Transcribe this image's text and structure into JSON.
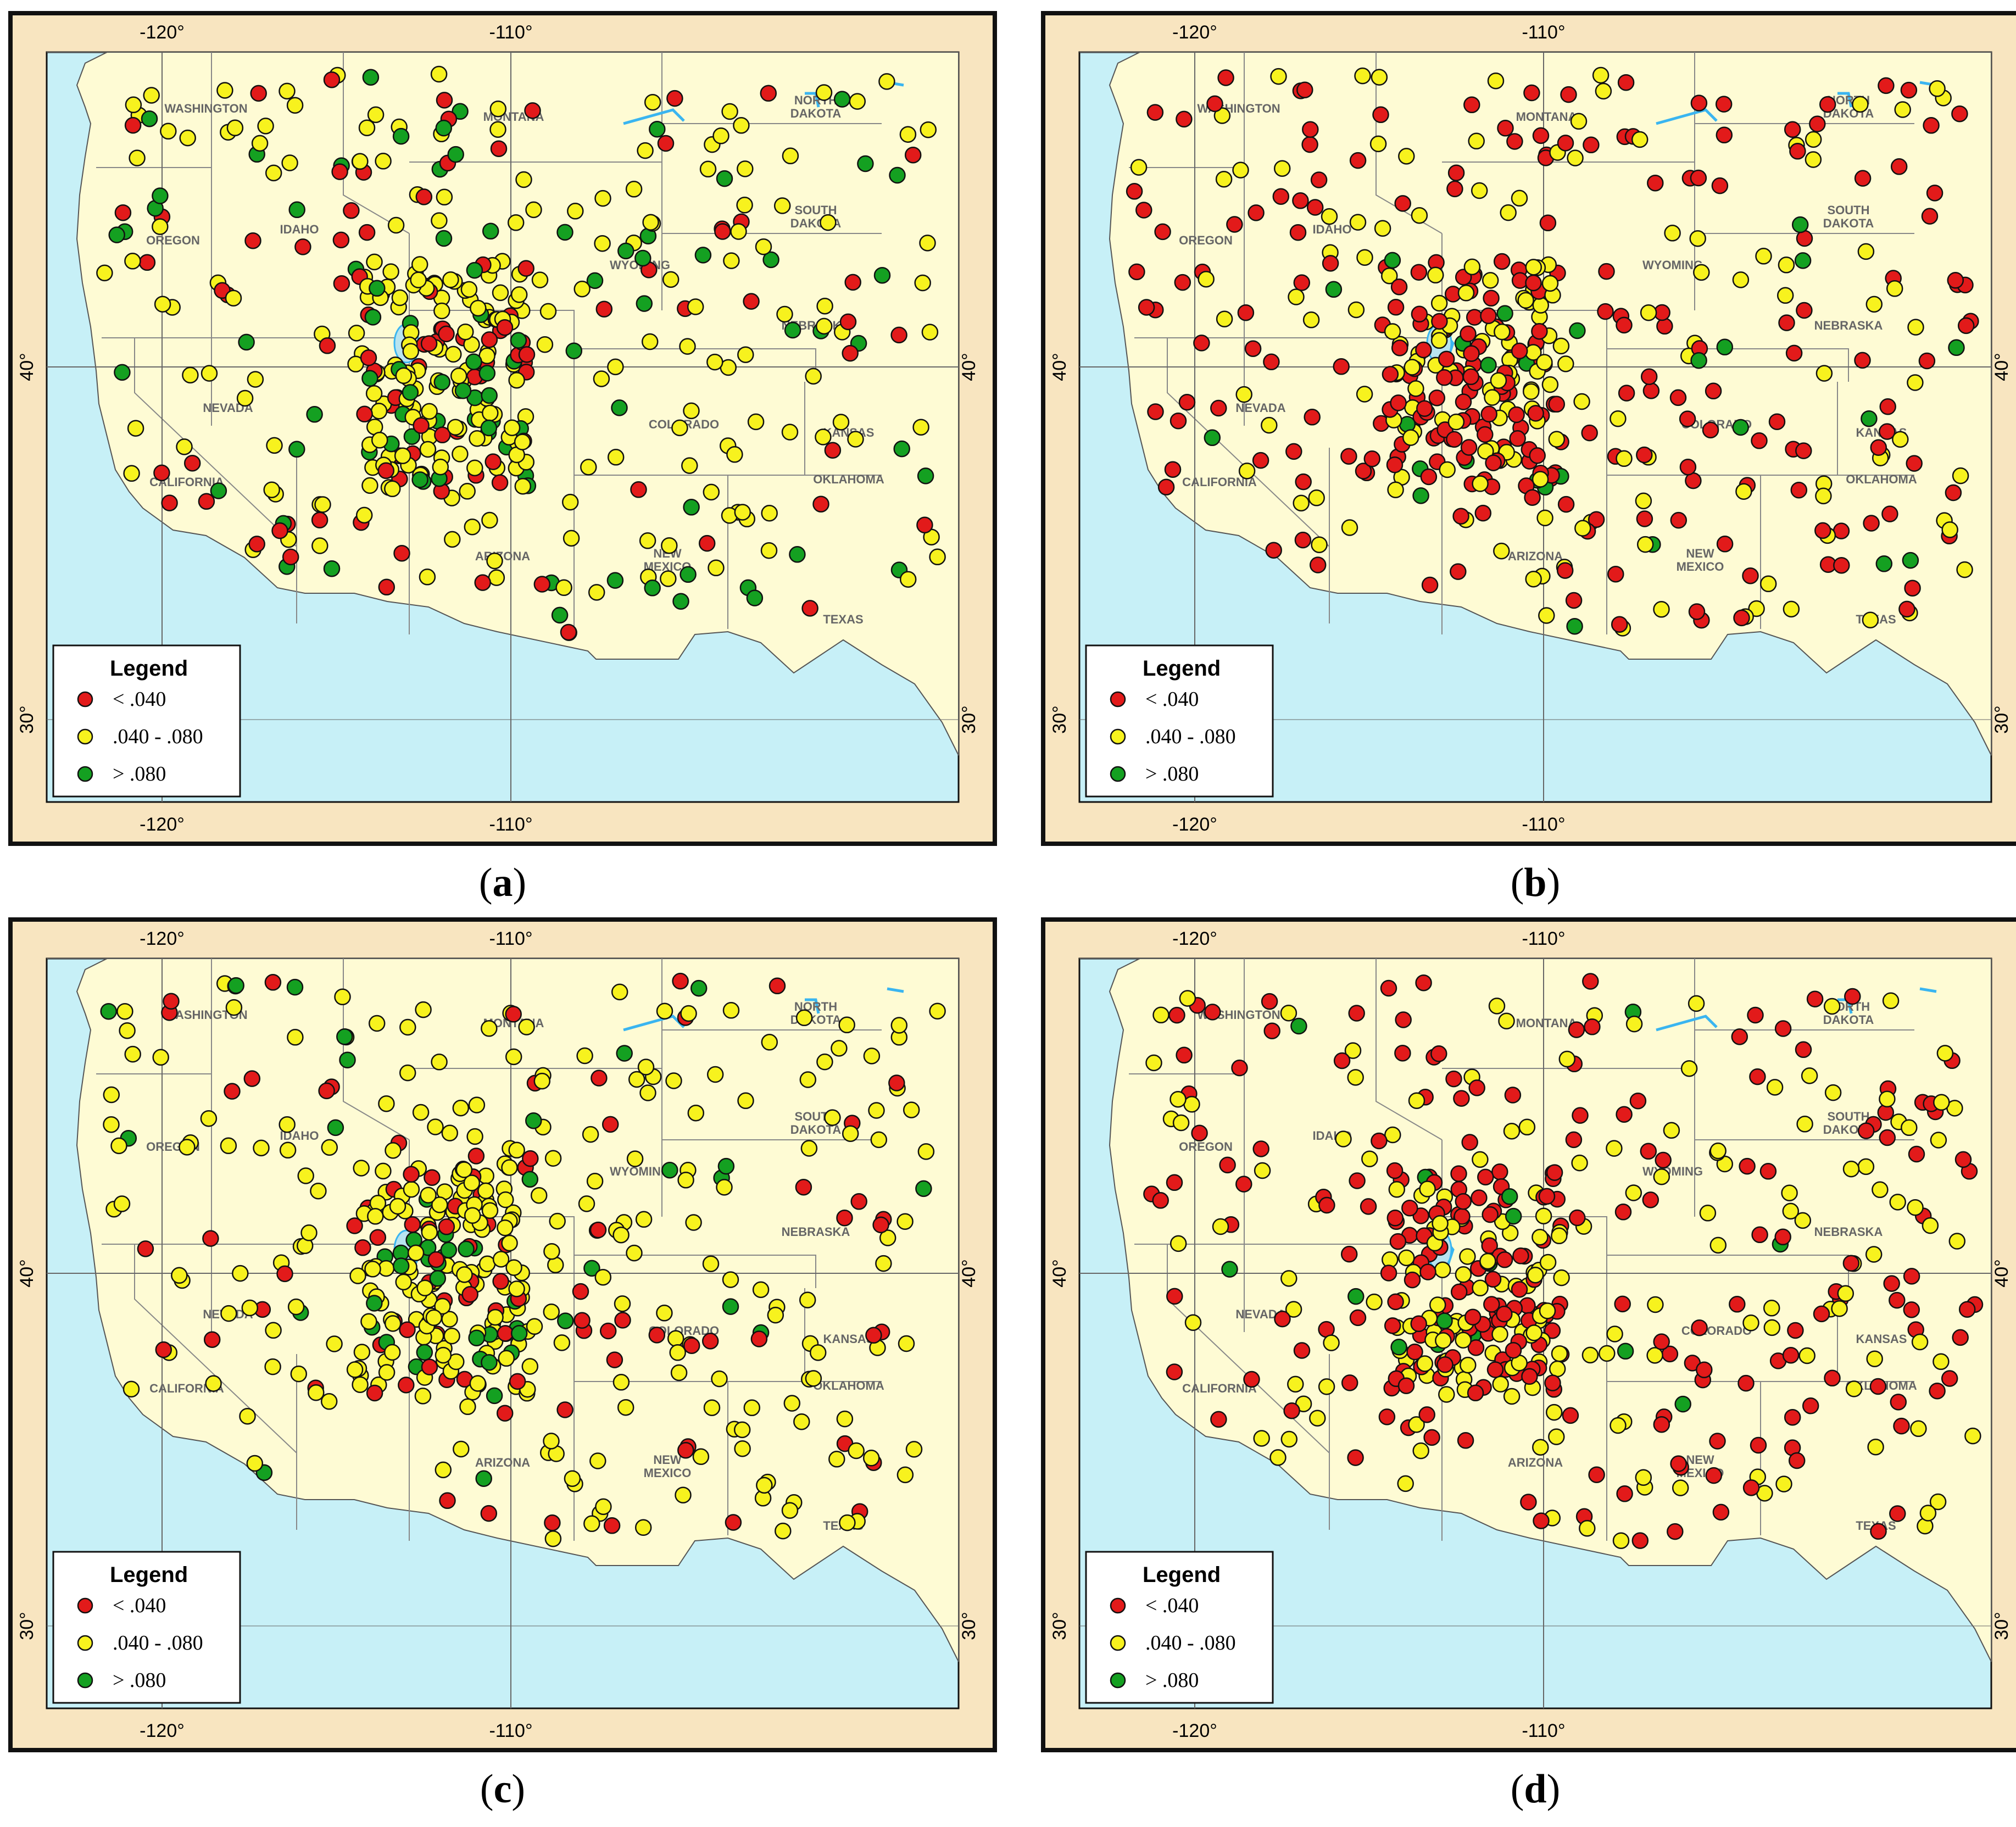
{
  "panels": [
    {
      "id": "a",
      "caption": "a",
      "mix": [
        0.22,
        0.55,
        0.23
      ]
    },
    {
      "id": "b",
      "caption": "b",
      "mix": [
        0.55,
        0.4,
        0.05
      ]
    },
    {
      "id": "c",
      "caption": "c",
      "mix": [
        0.2,
        0.7,
        0.1
      ]
    },
    {
      "id": "d",
      "caption": "d",
      "mix": [
        0.55,
        0.4,
        0.05
      ]
    }
  ],
  "axes": {
    "top_labels": [
      "-120°",
      "-110°"
    ],
    "bottom_labels": [
      "-120°",
      "-110°"
    ],
    "left_labels": [
      "40°",
      "30°"
    ],
    "right_labels": [
      "40°",
      "30°"
    ]
  },
  "states": [
    "WASHINGTON",
    "OREGON",
    "IDAHO",
    "MONTANA",
    "NORTH DAKOTA",
    "SOUTH DAKOTA",
    "WYOMING",
    "NEBRASKA",
    "NEVADA",
    "COLORADO",
    "KANSAS",
    "CALIFORNIA",
    "ARIZONA",
    "NEW MEXICO",
    "OKLAHOMA",
    "TEXAS"
  ],
  "legend": {
    "title": "Legend",
    "items": [
      {
        "label": "< .040",
        "color": "#e21a1a"
      },
      {
        "label": ".040 - .080",
        "color": "#f7f21e"
      },
      {
        "label": "> .080",
        "color": "#14a021"
      }
    ]
  },
  "colors": {
    "land": "#fefbd4",
    "water": "#c7f0f7",
    "frame": "#f8e5c0",
    "border": "#111111"
  }
}
